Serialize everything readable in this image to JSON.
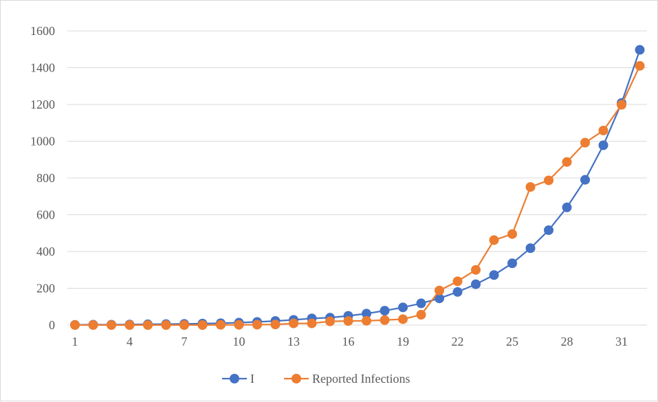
{
  "chart_data": {
    "type": "line",
    "x": [
      1,
      2,
      3,
      4,
      5,
      6,
      7,
      8,
      9,
      10,
      11,
      12,
      13,
      14,
      15,
      16,
      17,
      18,
      19,
      20,
      21,
      22,
      23,
      24,
      25,
      26,
      27,
      28,
      29,
      30,
      31,
      32
    ],
    "x_tick_labels": [
      "1",
      "4",
      "7",
      "10",
      "13",
      "16",
      "19",
      "22",
      "25",
      "28",
      "31"
    ],
    "y_tick_labels": [
      "0",
      "200",
      "400",
      "600",
      "800",
      "1000",
      "1200",
      "1400",
      "1600"
    ],
    "ylim": [
      0,
      1600
    ],
    "grid": "horizontal",
    "legend_position": "bottom",
    "series": [
      {
        "name": "I",
        "color": "#4472C4",
        "values": [
          1,
          2,
          2,
          3,
          4,
          5,
          6,
          8,
          10,
          13,
          17,
          22,
          28,
          36,
          40,
          50,
          62,
          78,
          96,
          118,
          145,
          180,
          222,
          272,
          336,
          418,
          516,
          640,
          790,
          978,
          1208,
          1497
        ]
      },
      {
        "name": "Reported Infections",
        "color": "#ED7D31",
        "values": [
          0,
          0,
          0,
          0,
          0,
          0,
          0,
          0,
          1,
          1,
          2,
          3,
          9,
          9,
          20,
          22,
          23,
          27,
          32,
          56,
          188,
          238,
          300,
          462,
          495,
          751,
          787,
          887,
          992,
          1058,
          1198,
          1410
        ]
      }
    ]
  }
}
